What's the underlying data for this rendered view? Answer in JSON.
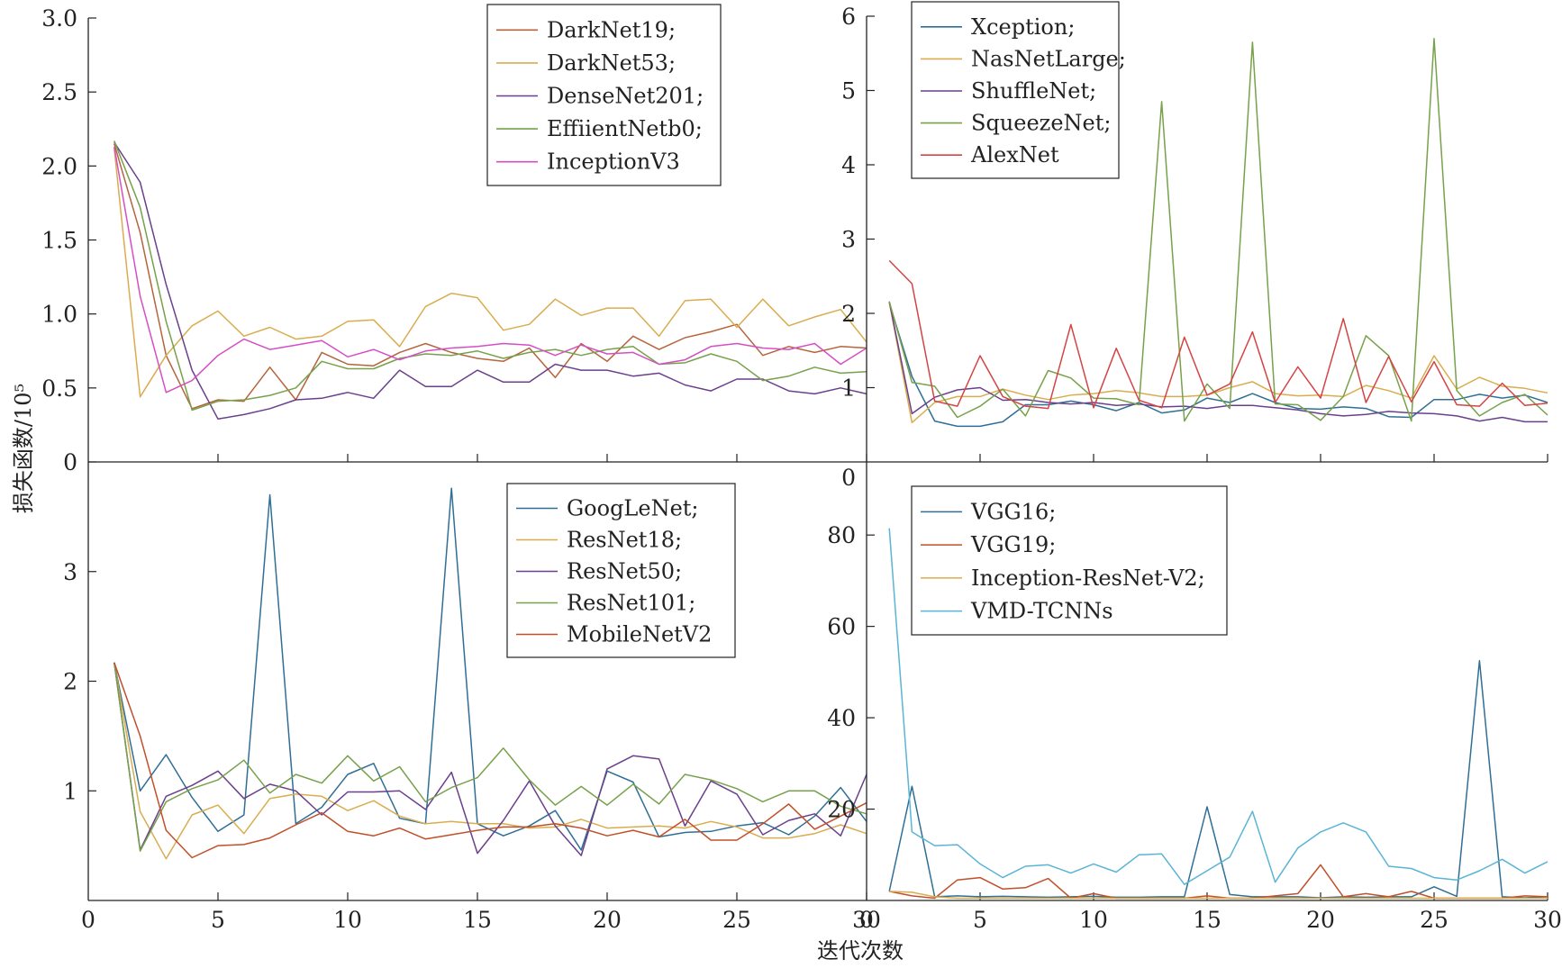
{
  "figure": {
    "ylabel": "损失函数/10⁵",
    "xlabel": "迭代次数"
  },
  "chart_data": [
    {
      "type": "line",
      "x": [
        1,
        2,
        3,
        4,
        5,
        6,
        7,
        8,
        9,
        10,
        11,
        12,
        13,
        14,
        15,
        16,
        17,
        18,
        19,
        20,
        21,
        22,
        23,
        24,
        25,
        26,
        27,
        28,
        29,
        30
      ],
      "ylim": [
        0,
        3.0
      ],
      "yticks": [
        0,
        0.5,
        1.0,
        1.5,
        2.0,
        2.5,
        3.0
      ],
      "ytick_labels": [
        "0",
        "0.5",
        "1.0",
        "1.5",
        "2.0",
        "2.5",
        "3.0"
      ],
      "xlim": [
        0,
        30
      ],
      "xticks": [
        5,
        10,
        15,
        20,
        25,
        30
      ],
      "xtick_labels": [],
      "legend_position": "top-right",
      "series": [
        {
          "name": "DarkNet19;",
          "color": "#b5643c",
          "values": [
            2.15,
            1.55,
            0.72,
            0.36,
            0.42,
            0.41,
            0.64,
            0.42,
            0.74,
            0.66,
            0.65,
            0.74,
            0.8,
            0.74,
            0.7,
            0.68,
            0.77,
            0.57,
            0.8,
            0.68,
            0.85,
            0.76,
            0.84,
            0.88,
            0.93,
            0.72,
            0.78,
            0.74,
            0.78,
            0.77
          ]
        },
        {
          "name": "DarkNet53;",
          "color": "#d9ad4f",
          "values": [
            2.12,
            0.44,
            0.72,
            0.92,
            1.02,
            0.85,
            0.91,
            0.83,
            0.85,
            0.95,
            0.96,
            0.78,
            1.05,
            1.14,
            1.11,
            0.89,
            0.93,
            1.1,
            0.99,
            1.04,
            1.04,
            0.85,
            1.09,
            1.1,
            0.91,
            1.1,
            0.92,
            0.98,
            1.03,
            0.81
          ]
        },
        {
          "name": "DenseNet201;",
          "color": "#6a3f8c",
          "values": [
            2.16,
            1.89,
            1.2,
            0.62,
            0.29,
            0.32,
            0.36,
            0.42,
            0.43,
            0.47,
            0.43,
            0.62,
            0.51,
            0.51,
            0.62,
            0.54,
            0.54,
            0.66,
            0.62,
            0.62,
            0.58,
            0.6,
            0.52,
            0.48,
            0.56,
            0.56,
            0.48,
            0.46,
            0.5,
            0.46
          ]
        },
        {
          "name": "EffiientNetb0;",
          "color": "#77a14a",
          "values": [
            2.17,
            1.72,
            0.95,
            0.35,
            0.41,
            0.42,
            0.45,
            0.5,
            0.68,
            0.63,
            0.63,
            0.7,
            0.73,
            0.72,
            0.75,
            0.7,
            0.74,
            0.76,
            0.72,
            0.76,
            0.78,
            0.66,
            0.67,
            0.73,
            0.68,
            0.55,
            0.58,
            0.64,
            0.6,
            0.61
          ]
        },
        {
          "name": "InceptionV3",
          "color": "#d44fc4",
          "values": [
            2.13,
            1.12,
            0.47,
            0.55,
            0.72,
            0.83,
            0.76,
            0.79,
            0.82,
            0.71,
            0.76,
            0.69,
            0.75,
            0.77,
            0.78,
            0.8,
            0.79,
            0.72,
            0.79,
            0.73,
            0.74,
            0.66,
            0.69,
            0.78,
            0.8,
            0.77,
            0.76,
            0.8,
            0.66,
            0.77
          ]
        }
      ]
    },
    {
      "type": "line",
      "x": [
        1,
        2,
        3,
        4,
        5,
        6,
        7,
        8,
        9,
        10,
        11,
        12,
        13,
        14,
        15,
        16,
        17,
        18,
        19,
        20,
        21,
        22,
        23,
        24,
        25,
        26,
        27,
        28,
        29,
        30
      ],
      "ylim": [
        0,
        6
      ],
      "yticks": [
        1,
        2,
        3,
        4,
        5,
        6
      ],
      "ytick_labels": [
        "1",
        "2",
        "3",
        "4",
        "5",
        "6"
      ],
      "xlim": [
        0,
        30
      ],
      "xticks": [
        5,
        10,
        15,
        20,
        25,
        30
      ],
      "xtick_labels": [],
      "legend_position": "top-left",
      "series": [
        {
          "name": "Xception;",
          "color": "#2f6f96",
          "values": [
            2.14,
            1.15,
            0.55,
            0.48,
            0.48,
            0.54,
            0.77,
            0.77,
            0.82,
            0.77,
            0.69,
            0.8,
            0.66,
            0.7,
            0.86,
            0.8,
            0.92,
            0.8,
            0.72,
            0.71,
            0.74,
            0.72,
            0.61,
            0.6,
            0.84,
            0.84,
            0.91,
            0.86,
            0.9,
            0.8
          ]
        },
        {
          "name": "NasNetLarge;",
          "color": "#d9ad4f",
          "values": [
            2.15,
            0.53,
            0.8,
            0.88,
            0.88,
            0.98,
            0.9,
            0.84,
            0.9,
            0.92,
            0.96,
            0.93,
            0.88,
            0.88,
            0.9,
            1.0,
            1.08,
            0.92,
            0.89,
            0.9,
            0.88,
            1.03,
            0.96,
            0.86,
            1.43,
            0.98,
            1.14,
            1.02,
            0.99,
            0.93
          ]
        },
        {
          "name": "ShuffleNet;",
          "color": "#6a3f8c",
          "values": [
            2.16,
            0.65,
            0.87,
            0.97,
            1.0,
            0.83,
            0.84,
            0.8,
            0.78,
            0.8,
            0.76,
            0.78,
            0.74,
            0.75,
            0.72,
            0.76,
            0.76,
            0.73,
            0.7,
            0.65,
            0.62,
            0.64,
            0.68,
            0.66,
            0.65,
            0.62,
            0.55,
            0.6,
            0.54,
            0.54
          ]
        },
        {
          "name": "SqueezeNet;",
          "color": "#77a14a",
          "values": [
            2.16,
            1.07,
            1.02,
            0.6,
            0.75,
            0.98,
            0.62,
            1.23,
            1.13,
            0.86,
            0.85,
            0.77,
            4.85,
            0.55,
            1.05,
            0.72,
            5.65,
            0.78,
            0.77,
            0.56,
            0.88,
            1.7,
            1.43,
            0.55,
            5.7,
            0.96,
            0.62,
            0.8,
            0.91,
            0.63
          ]
        },
        {
          "name": "AlexNet",
          "color": "#d44444",
          "values": [
            2.71,
            2.4,
            0.82,
            0.75,
            1.43,
            0.88,
            0.75,
            0.72,
            1.85,
            0.73,
            1.53,
            0.83,
            0.73,
            1.68,
            0.9,
            1.05,
            1.75,
            0.8,
            1.28,
            0.86,
            1.93,
            0.8,
            1.42,
            0.81,
            1.35,
            0.77,
            0.75,
            1.06,
            0.76,
            0.79
          ]
        }
      ]
    },
    {
      "type": "line",
      "x": [
        1,
        2,
        3,
        4,
        5,
        6,
        7,
        8,
        9,
        10,
        11,
        12,
        13,
        14,
        15,
        16,
        17,
        18,
        19,
        20,
        21,
        22,
        23,
        24,
        25,
        26,
        27,
        28,
        29,
        30
      ],
      "ylim": [
        0,
        4
      ],
      "yticks": [
        1,
        2,
        3
      ],
      "ytick_labels": [
        "1",
        "2",
        "3"
      ],
      "xlim": [
        0,
        30
      ],
      "xticks": [
        0,
        5,
        10,
        15,
        20,
        25,
        30
      ],
      "xtick_labels": [
        "0",
        "5",
        "10",
        "15",
        "20",
        "25",
        "30"
      ],
      "legend_position": "top-right",
      "series": [
        {
          "name": "GoogLeNet;",
          "color": "#2f6f96",
          "values": [
            2.17,
            1.0,
            1.33,
            0.94,
            0.63,
            0.78,
            3.7,
            0.7,
            0.85,
            1.15,
            1.25,
            0.75,
            0.7,
            3.76,
            0.7,
            0.59,
            0.68,
            0.82,
            0.46,
            1.18,
            1.08,
            0.58,
            0.62,
            0.63,
            0.68,
            0.71,
            0.6,
            0.77,
            1.03,
            0.72
          ]
        },
        {
          "name": "ResNet18;",
          "color": "#d9ad4f",
          "values": [
            2.17,
            0.81,
            0.38,
            0.78,
            0.87,
            0.61,
            0.93,
            0.97,
            0.95,
            0.82,
            0.91,
            0.77,
            0.7,
            0.72,
            0.7,
            0.7,
            0.66,
            0.67,
            0.74,
            0.66,
            0.67,
            0.68,
            0.66,
            0.72,
            0.67,
            0.57,
            0.57,
            0.61,
            0.69,
            0.61
          ]
        },
        {
          "name": "ResNet50;",
          "color": "#6a3f8c",
          "values": [
            2.17,
            0.46,
            0.95,
            1.05,
            1.18,
            0.93,
            1.06,
            1.0,
            0.78,
            0.99,
            0.99,
            1.0,
            0.83,
            1.17,
            0.43,
            0.73,
            1.09,
            0.68,
            0.41,
            1.2,
            1.32,
            1.29,
            0.68,
            1.09,
            0.97,
            0.6,
            0.73,
            0.79,
            0.59,
            1.15
          ]
        },
        {
          "name": "ResNet101;",
          "color": "#77a14a",
          "values": [
            2.17,
            0.45,
            0.9,
            1.02,
            1.1,
            1.28,
            0.98,
            1.15,
            1.07,
            1.32,
            1.09,
            1.22,
            0.9,
            1.03,
            1.12,
            1.39,
            1.1,
            0.87,
            1.04,
            0.87,
            1.06,
            0.88,
            1.15,
            1.1,
            1.02,
            0.9,
            1.0,
            1.0,
            0.86,
            0.79
          ]
        },
        {
          "name": "MobileNetV2",
          "color": "#c0502a",
          "values": [
            2.17,
            1.5,
            0.64,
            0.39,
            0.5,
            0.51,
            0.57,
            0.69,
            0.8,
            0.63,
            0.59,
            0.66,
            0.56,
            0.6,
            0.64,
            0.67,
            0.67,
            0.7,
            0.66,
            0.59,
            0.64,
            0.58,
            0.74,
            0.55,
            0.55,
            0.7,
            0.88,
            0.65,
            0.77,
            0.89
          ]
        }
      ]
    },
    {
      "type": "line",
      "x": [
        1,
        2,
        3,
        4,
        5,
        6,
        7,
        8,
        9,
        10,
        11,
        12,
        13,
        14,
        15,
        16,
        17,
        18,
        19,
        20,
        21,
        22,
        23,
        24,
        25,
        26,
        27,
        28,
        29,
        30
      ],
      "ylim": [
        0,
        96
      ],
      "yticks": [
        20,
        40,
        60,
        80
      ],
      "ytick_labels": [
        "20",
        "40",
        "60",
        "80"
      ],
      "top_label": "0",
      "xlim": [
        0,
        30
      ],
      "xticks": [
        0,
        5,
        10,
        15,
        20,
        25,
        30
      ],
      "xtick_labels": [
        "0",
        "5",
        "10",
        "15",
        "20",
        "25",
        "30"
      ],
      "legend_position": "top-left",
      "series": [
        {
          "name": "VGG16;",
          "color": "#2f6f96",
          "values": [
            2.0,
            25.0,
            0.8,
            1.0,
            0.8,
            0.9,
            0.8,
            0.7,
            0.8,
            0.9,
            0.7,
            0.7,
            0.8,
            0.8,
            20.5,
            1.3,
            0.8,
            0.8,
            0.8,
            0.6,
            0.8,
            0.7,
            0.8,
            0.8,
            3.0,
            0.9,
            52.5,
            0.8,
            0.6,
            0.8
          ]
        },
        {
          "name": "VGG19;",
          "color": "#c0502a",
          "values": [
            2.0,
            1.0,
            0.5,
            4.5,
            5.0,
            2.5,
            2.8,
            4.8,
            0.5,
            1.5,
            0.5,
            0.5,
            0.5,
            0.5,
            1.0,
            0.5,
            0.5,
            1.0,
            1.5,
            7.8,
            0.8,
            1.5,
            0.8,
            2.0,
            0.5,
            0.5,
            0.5,
            0.5,
            1.0,
            0.8
          ]
        },
        {
          "name": "Inception-ResNet-V2;",
          "color": "#d9ad4f",
          "values": [
            2.0,
            1.8,
            0.8,
            0.5,
            0.5,
            0.5,
            0.5,
            0.5,
            0.5,
            0.5,
            0.5,
            0.5,
            0.5,
            0.5,
            0.5,
            0.5,
            0.5,
            0.5,
            0.5,
            0.5,
            0.5,
            0.5,
            0.5,
            0.5,
            0.5,
            0.5,
            0.5,
            0.5,
            0.5,
            0.5
          ]
        },
        {
          "name": "VMD-TCNNs",
          "color": "#5ab4d6",
          "values": [
            81.5,
            15.0,
            12.0,
            12.2,
            8.0,
            5.0,
            7.5,
            7.8,
            6.0,
            8.0,
            6.2,
            10.0,
            10.2,
            3.5,
            6.5,
            9.5,
            19.5,
            4.0,
            11.5,
            15.0,
            17.0,
            15.0,
            7.5,
            7.0,
            5.0,
            4.5,
            6.5,
            9.0,
            6.0,
            8.5
          ]
        }
      ]
    }
  ]
}
